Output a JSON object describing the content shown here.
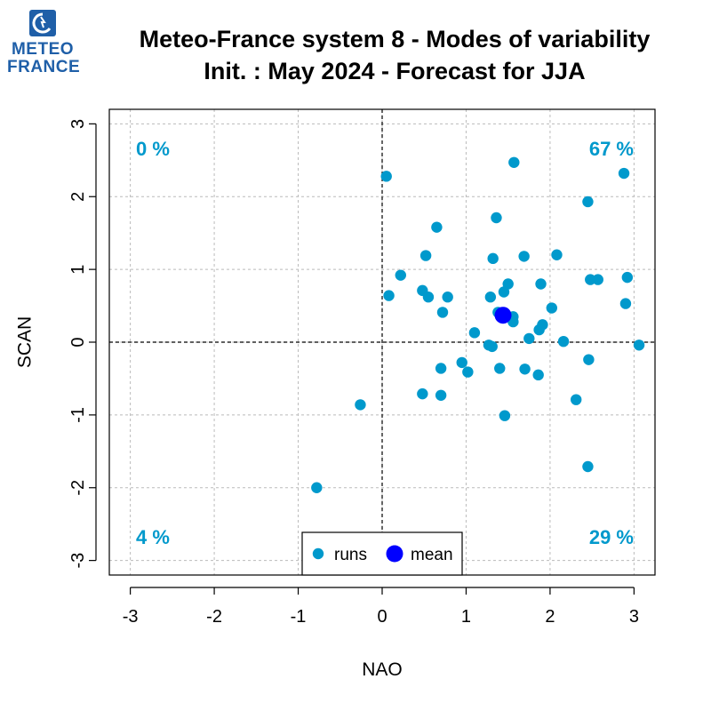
{
  "logo": {
    "line1": "METEO",
    "line2": "FRANCE"
  },
  "title": {
    "line1": "Meteo-France system 8 - Modes of variability",
    "line2": "Init. : May 2024 - Forecast for JJA"
  },
  "chart_data": {
    "type": "scatter",
    "xlabel": "NAO",
    "ylabel": "SCAN",
    "xlim": [
      -3.25,
      3.25
    ],
    "ylim": [
      -3.2,
      3.2
    ],
    "xticks": [
      -3,
      -2,
      -1,
      0,
      1,
      2,
      3
    ],
    "yticks": [
      -3,
      -2,
      -1,
      0,
      1,
      2,
      3
    ],
    "grid": true,
    "reference_lines": {
      "x": 0,
      "y": 0
    },
    "legend": {
      "placement": "bottom-center",
      "entries": [
        "runs",
        "mean"
      ]
    },
    "colors": {
      "runs": "#0099cc",
      "mean": "#0000ff",
      "quadrant_text": "#0099cc"
    },
    "quadrant_labels": {
      "top_left": "0 %",
      "top_right": "67 %",
      "bottom_left": "4 %",
      "bottom_right": "29 %"
    },
    "series": [
      {
        "name": "runs",
        "points": [
          [
            1.57,
            2.47
          ],
          [
            0.05,
            2.28
          ],
          [
            2.88,
            2.32
          ],
          [
            2.45,
            1.93
          ],
          [
            1.36,
            1.71
          ],
          [
            0.65,
            1.58
          ],
          [
            0.52,
            1.19
          ],
          [
            1.32,
            1.15
          ],
          [
            1.69,
            1.18
          ],
          [
            2.08,
            1.2
          ],
          [
            0.22,
            0.92
          ],
          [
            2.48,
            0.86
          ],
          [
            2.57,
            0.86
          ],
          [
            2.92,
            0.89
          ],
          [
            1.5,
            0.8
          ],
          [
            1.89,
            0.8
          ],
          [
            0.48,
            0.71
          ],
          [
            1.45,
            0.69
          ],
          [
            0.08,
            0.64
          ],
          [
            0.55,
            0.62
          ],
          [
            0.78,
            0.62
          ],
          [
            1.29,
            0.62
          ],
          [
            2.02,
            0.47
          ],
          [
            2.9,
            0.53
          ],
          [
            0.72,
            0.41
          ],
          [
            1.38,
            0.41
          ],
          [
            1.56,
            0.35
          ],
          [
            1.56,
            0.28
          ],
          [
            1.91,
            0.24
          ],
          [
            1.87,
            0.17
          ],
          [
            1.1,
            0.13
          ],
          [
            1.75,
            0.05
          ],
          [
            2.16,
            0.01
          ],
          [
            1.27,
            -0.04
          ],
          [
            1.31,
            -0.06
          ],
          [
            3.06,
            -0.04
          ],
          [
            2.46,
            -0.24
          ],
          [
            0.95,
            -0.28
          ],
          [
            0.7,
            -0.36
          ],
          [
            1.4,
            -0.36
          ],
          [
            1.7,
            -0.37
          ],
          [
            1.02,
            -0.41
          ],
          [
            1.86,
            -0.45
          ],
          [
            0.48,
            -0.71
          ],
          [
            0.7,
            -0.73
          ],
          [
            2.31,
            -0.79
          ],
          [
            -0.26,
            -0.86
          ],
          [
            1.46,
            -1.01
          ],
          [
            2.45,
            -1.71
          ],
          [
            -0.78,
            -2.0
          ]
        ]
      },
      {
        "name": "mean",
        "points": [
          [
            1.44,
            0.37
          ]
        ]
      }
    ]
  }
}
